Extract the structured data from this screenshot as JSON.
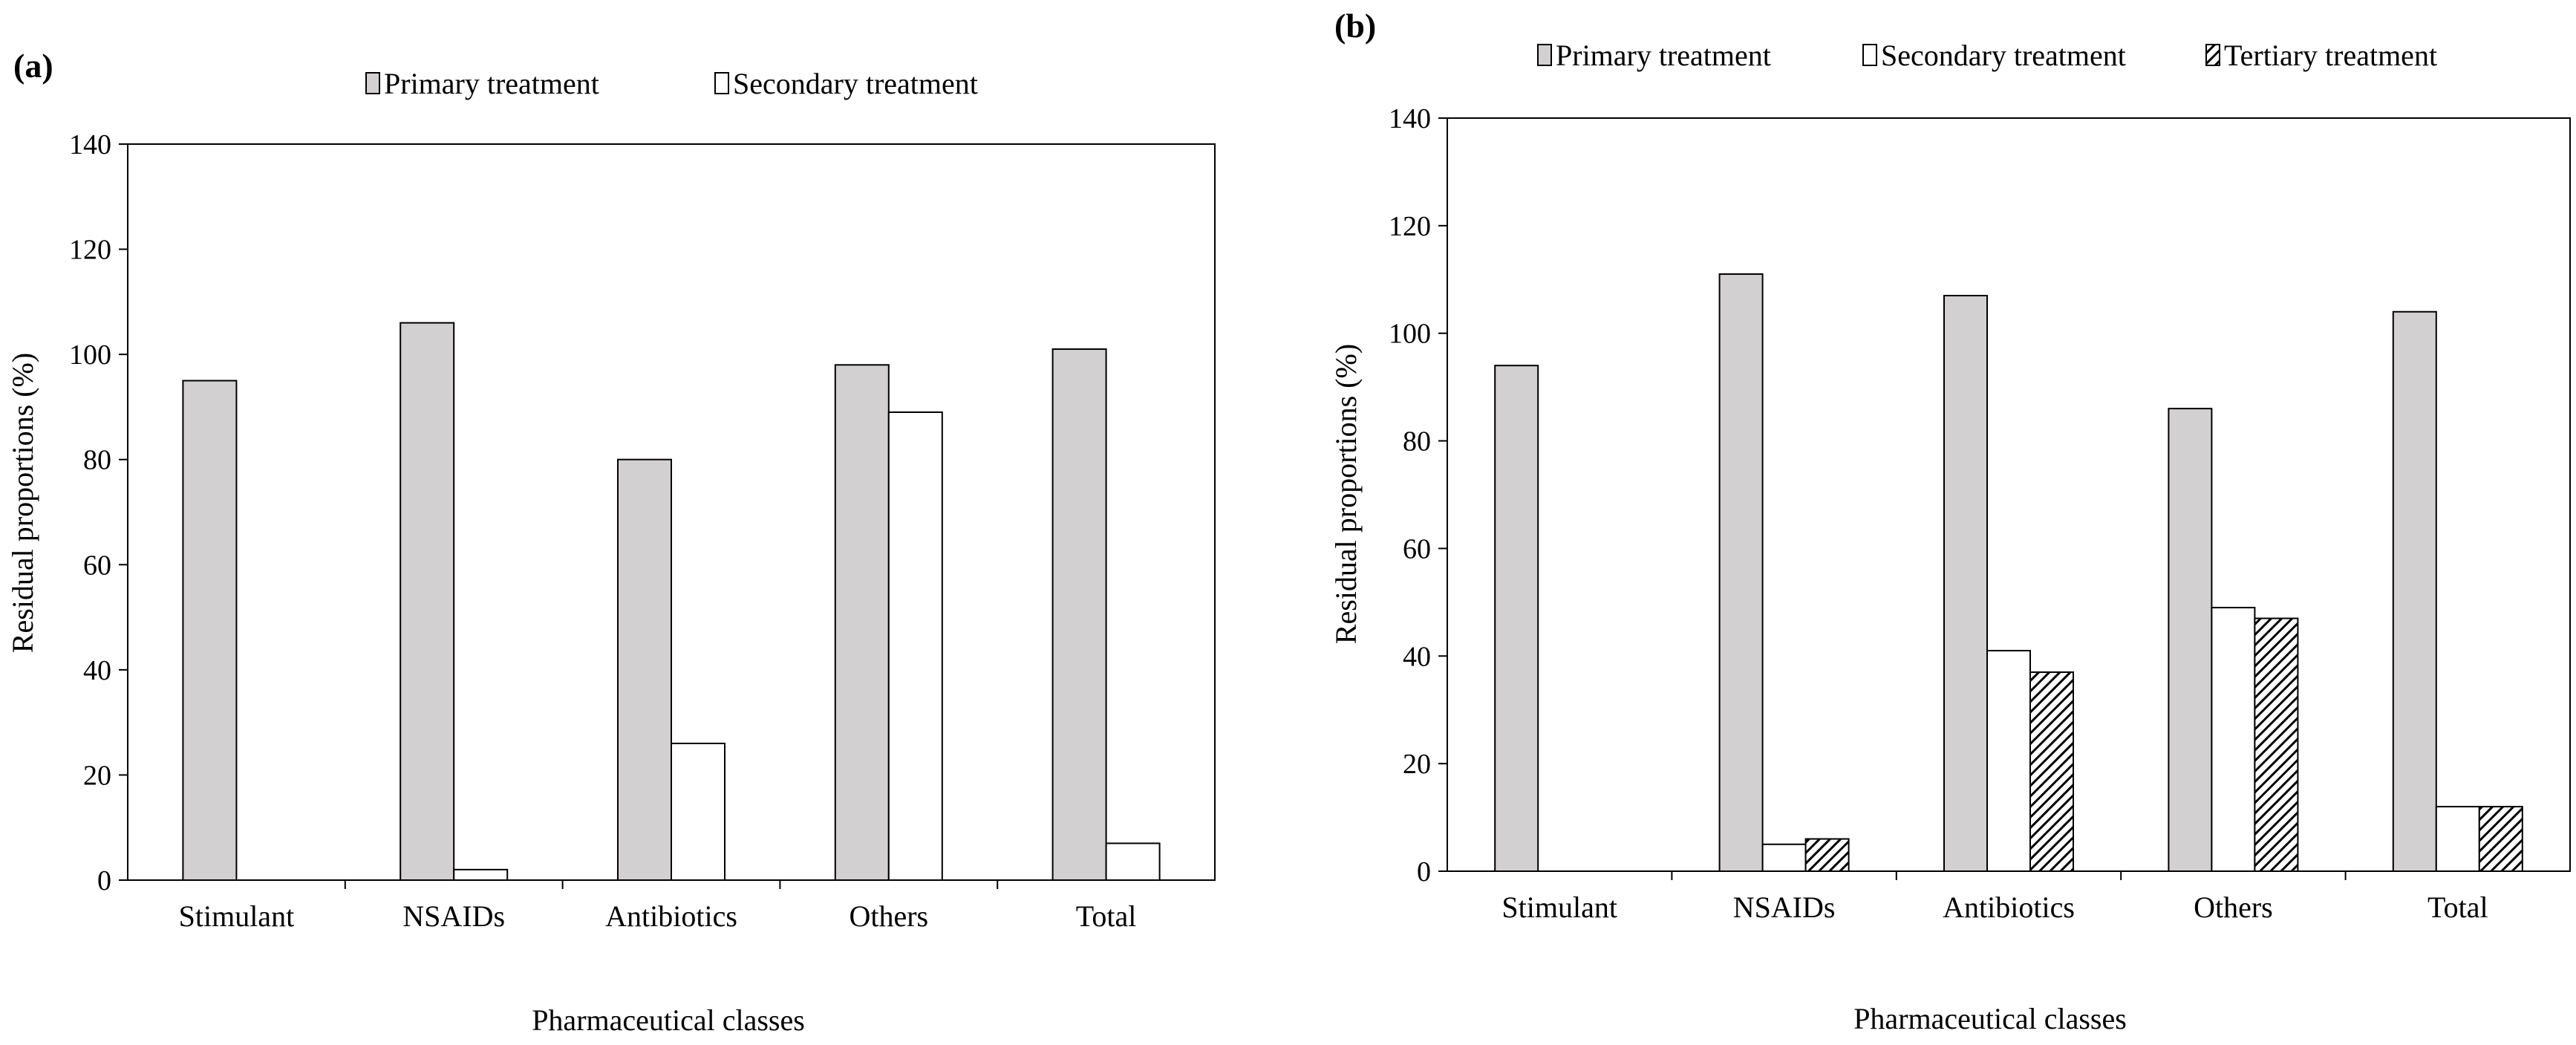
{
  "legend_labels": {
    "primary": "Primary treatment",
    "secondary": "Secondary treatment",
    "tertiary": "Tertiary treatment"
  },
  "colors": {
    "primary": "#d3d0d1",
    "secondary": "#ffffff",
    "tertiary_hatch": "#000000",
    "axis": "#000000"
  },
  "chart_data": [
    {
      "panel_label": "(a)",
      "type": "bar",
      "title": "",
      "xlabel": "Pharmaceutical classes",
      "ylabel": "Residual proportions (%)",
      "ylim": [
        0,
        140
      ],
      "yticks": [
        "0",
        "20",
        "40",
        "60",
        "80",
        "100",
        "120",
        "140"
      ],
      "categories": [
        "Stimulant",
        "NSAIDs",
        "Antibiotics",
        "Others",
        "Total"
      ],
      "legend": [
        "Primary treatment",
        "Secondary treatment"
      ],
      "series": [
        {
          "name": "Primary treatment",
          "key": "primary",
          "values": [
            95,
            106,
            80,
            98,
            101
          ]
        },
        {
          "name": "Secondary treatment",
          "key": "secondary",
          "values": [
            0,
            2,
            26,
            89,
            7
          ]
        }
      ]
    },
    {
      "panel_label": "(b)",
      "type": "bar",
      "title": "",
      "xlabel": "Pharmaceutical classes",
      "ylabel": "Residual proportions (%)",
      "ylim": [
        0,
        140
      ],
      "yticks": [
        "0",
        "20",
        "40",
        "60",
        "80",
        "100",
        "120",
        "140"
      ],
      "categories": [
        "Stimulant",
        "NSAIDs",
        "Antibiotics",
        "Others",
        "Total"
      ],
      "legend": [
        "Primary treatment",
        "Secondary treatment",
        "Tertiary treatment"
      ],
      "series": [
        {
          "name": "Primary treatment",
          "key": "primary",
          "values": [
            94,
            111,
            107,
            86,
            104
          ]
        },
        {
          "name": "Secondary treatment",
          "key": "secondary",
          "values": [
            0,
            5,
            41,
            49,
            12
          ]
        },
        {
          "name": "Tertiary treatment",
          "key": "tertiary",
          "values": [
            0,
            6,
            37,
            47,
            12
          ]
        }
      ]
    }
  ]
}
